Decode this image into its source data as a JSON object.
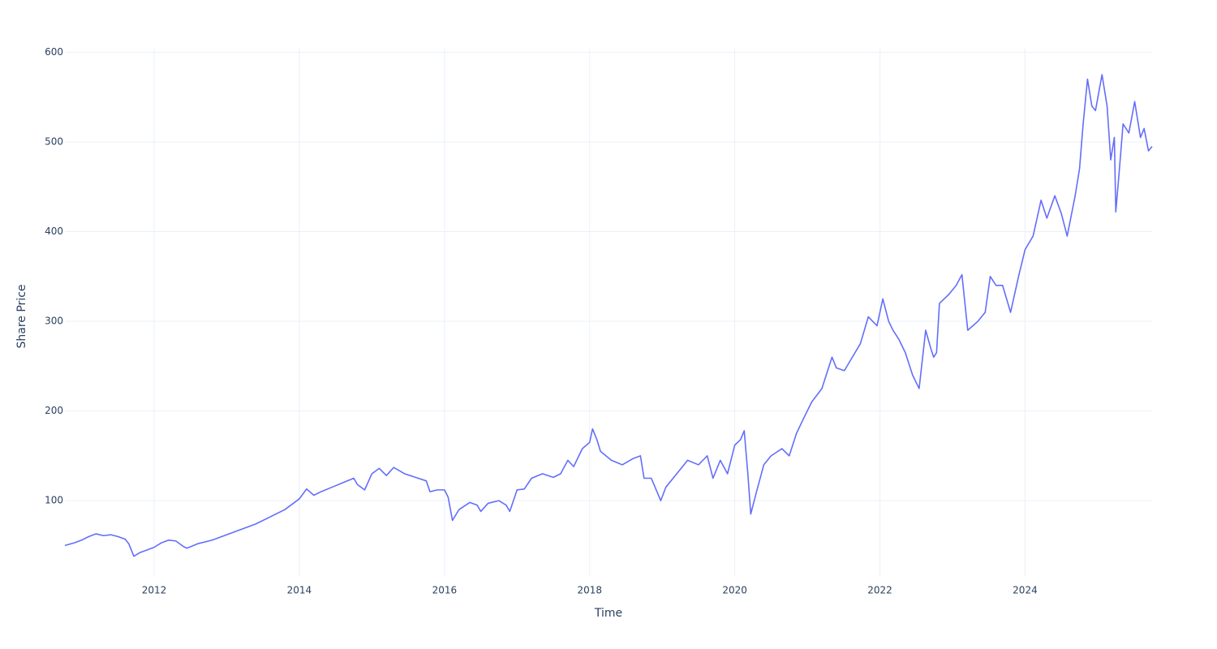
{
  "chart_data": {
    "type": "line",
    "x_label": "Time",
    "y_label": "Share Price",
    "color": "#636efa",
    "grid": true,
    "xlim": [
      2010.77,
      2025.75
    ],
    "ylim": [
      16,
      604
    ],
    "xticks": [
      2012,
      2014,
      2016,
      2018,
      2020,
      2022,
      2024
    ],
    "yticks": [
      100,
      200,
      300,
      400,
      500,
      600
    ],
    "x": [
      2010.77,
      2010.9,
      2011.0,
      2011.1,
      2011.2,
      2011.3,
      2011.4,
      2011.5,
      2011.6,
      2011.65,
      2011.72,
      2011.8,
      2011.9,
      2012.0,
      2012.1,
      2012.2,
      2012.3,
      2012.4,
      2012.45,
      2012.6,
      2012.8,
      2013.0,
      2013.2,
      2013.4,
      2013.6,
      2013.8,
      2014.0,
      2014.1,
      2014.2,
      2014.3,
      2014.45,
      2014.6,
      2014.75,
      2014.8,
      2014.9,
      2015.0,
      2015.1,
      2015.2,
      2015.3,
      2015.45,
      2015.6,
      2015.75,
      2015.8,
      2015.9,
      2016.0,
      2016.05,
      2016.11,
      2016.2,
      2016.35,
      2016.45,
      2016.5,
      2016.6,
      2016.75,
      2016.85,
      2016.9,
      2017.0,
      2017.1,
      2017.2,
      2017.35,
      2017.5,
      2017.6,
      2017.7,
      2017.78,
      2017.9,
      2018.0,
      2018.04,
      2018.1,
      2018.15,
      2018.3,
      2018.45,
      2018.6,
      2018.7,
      2018.75,
      2018.85,
      2018.98,
      2019.05,
      2019.2,
      2019.35,
      2019.5,
      2019.62,
      2019.7,
      2019.8,
      2019.9,
      2020.0,
      2020.08,
      2020.13,
      2020.18,
      2020.22,
      2020.3,
      2020.4,
      2020.5,
      2020.65,
      2020.75,
      2020.85,
      2020.95,
      2021.06,
      2021.2,
      2021.34,
      2021.4,
      2021.51,
      2021.62,
      2021.73,
      2021.84,
      2021.96,
      2022.04,
      2022.12,
      2022.18,
      2022.26,
      2022.35,
      2022.45,
      2022.54,
      2022.63,
      2022.7,
      2022.74,
      2022.78,
      2022.82,
      2022.95,
      2023.05,
      2023.13,
      2023.21,
      2023.35,
      2023.45,
      2023.52,
      2023.6,
      2023.69,
      2023.8,
      2023.91,
      2024.0,
      2024.11,
      2024.22,
      2024.3,
      2024.41,
      2024.5,
      2024.58,
      2024.69,
      2024.75,
      2024.8,
      2024.86,
      2024.92,
      2024.97,
      2025.06,
      2025.13,
      2025.18,
      2025.23,
      2025.25,
      2025.3,
      2025.35,
      2025.43,
      2025.51,
      2025.59,
      2025.64,
      2025.7,
      2025.75
    ],
    "values": [
      50,
      53,
      56,
      60,
      63,
      61,
      62,
      60,
      57,
      52,
      38,
      42,
      45,
      48,
      53,
      56,
      55,
      49,
      47,
      52,
      56,
      62,
      68,
      74,
      82,
      90,
      102,
      113,
      106,
      110,
      115,
      120,
      125,
      118,
      112,
      130,
      136,
      128,
      137,
      130,
      126,
      122,
      110,
      112,
      112,
      104,
      78,
      90,
      98,
      95,
      88,
      97,
      100,
      95,
      88,
      112,
      113,
      125,
      130,
      126,
      130,
      145,
      138,
      158,
      165,
      180,
      168,
      155,
      145,
      140,
      147,
      150,
      125,
      125,
      100,
      115,
      130,
      145,
      140,
      150,
      125,
      145,
      130,
      162,
      168,
      178,
      130,
      85,
      110,
      140,
      150,
      158,
      150,
      175,
      192,
      210,
      225,
      260,
      248,
      245,
      260,
      275,
      305,
      295,
      325,
      300,
      290,
      280,
      265,
      240,
      225,
      290,
      270,
      260,
      265,
      320,
      330,
      340,
      352,
      290,
      300,
      310,
      350,
      340,
      340,
      310,
      350,
      380,
      395,
      435,
      415,
      440,
      420,
      395,
      440,
      470,
      520,
      570,
      540,
      535,
      575,
      540,
      480,
      505,
      422,
      470,
      520,
      510,
      545,
      505,
      515,
      490,
      495
    ]
  }
}
